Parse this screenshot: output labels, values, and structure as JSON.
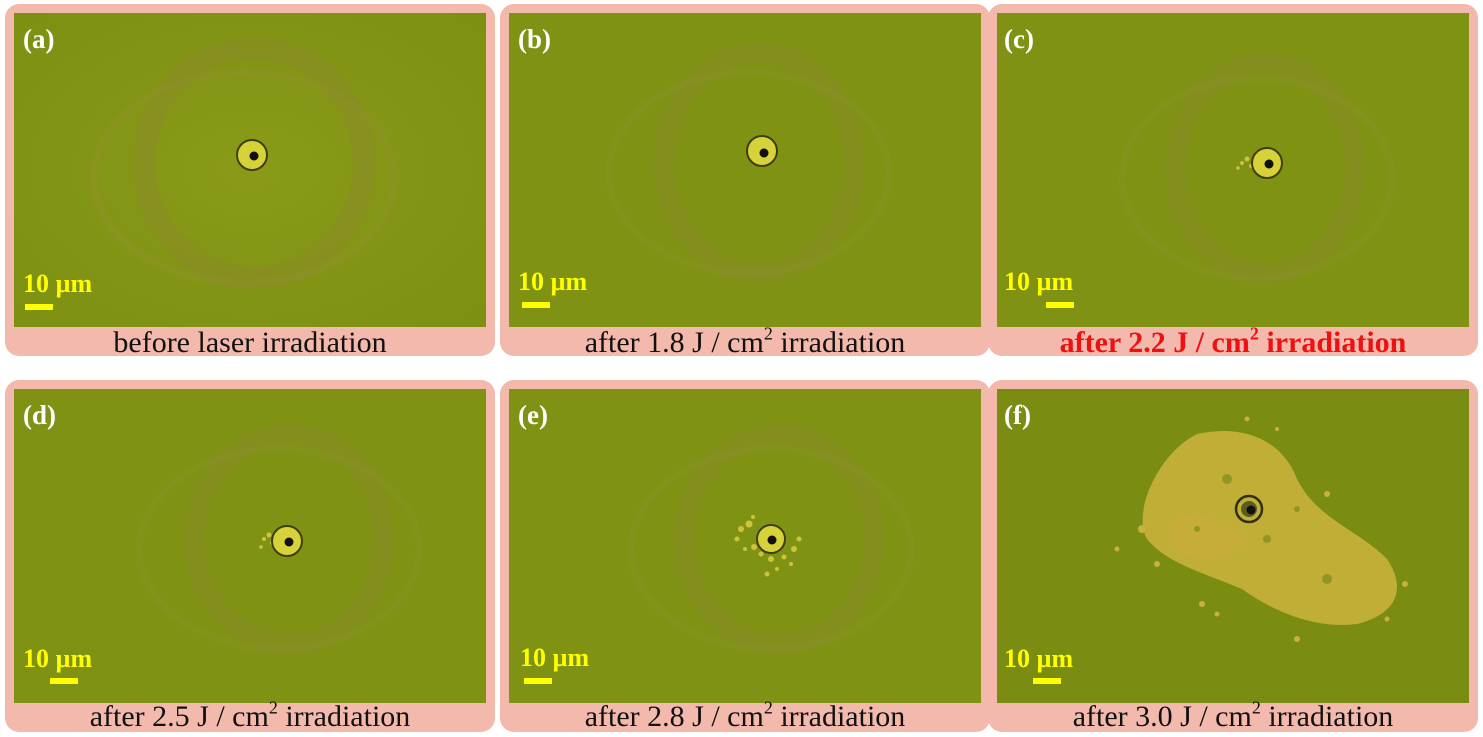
{
  "colors": {
    "panel_frame": "#f3b9ad",
    "label_text": "#ffffff",
    "scale_color": "#ffff00",
    "highlight_caption": "#ee1111"
  },
  "panels": [
    {
      "label": "(a)",
      "scale": "10 µm",
      "caption_main": "before laser irradiation",
      "caption_sup": "",
      "caption_tail": "",
      "highlight": false,
      "damage": "none"
    },
    {
      "label": "(b)",
      "scale": "10 µm",
      "caption_main": "after 1.8 J / cm",
      "caption_sup": "2",
      "caption_tail": " irradiation",
      "highlight": false,
      "damage": "none"
    },
    {
      "label": "(c)",
      "scale": "10 µm",
      "caption_main": "after 2.2 J / cm",
      "caption_sup": "2",
      "caption_tail": " irradiation",
      "highlight": true,
      "damage": "slight"
    },
    {
      "label": "(d)",
      "scale": "10 µm",
      "caption_main": "after 2.5 J / cm",
      "caption_sup": "2",
      "caption_tail": " irradiation",
      "highlight": false,
      "damage": "slight"
    },
    {
      "label": "(e)",
      "scale": "10 µm",
      "caption_main": "after 2.8 J / cm",
      "caption_sup": "2",
      "caption_tail": " irradiation",
      "highlight": false,
      "damage": "moderate"
    },
    {
      "label": "(f)",
      "scale": "10 µm",
      "caption_main": "after 3.0 J / cm",
      "caption_sup": "2",
      "caption_tail": " irradiation",
      "highlight": false,
      "damage": "severe"
    }
  ]
}
